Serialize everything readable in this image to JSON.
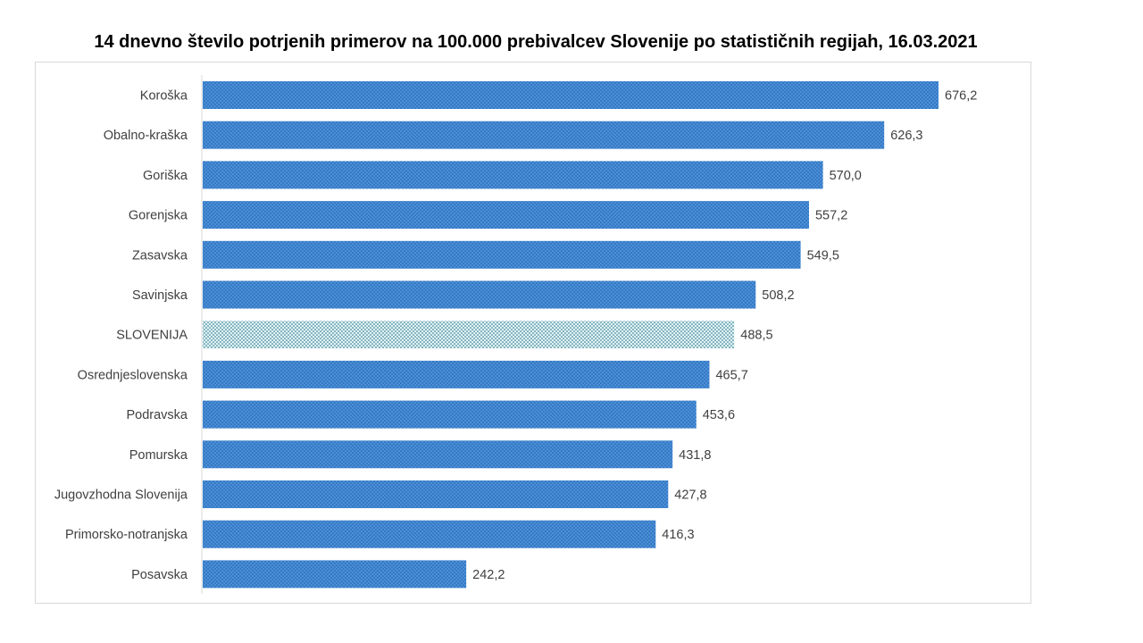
{
  "chart_data": {
    "type": "bar",
    "orientation": "horizontal",
    "title": "14 dnevno število potrjenih primerov na 100.000 prebivalcev Slovenije po statističnih regijah, 16.03.2021",
    "categories": [
      "Koroška",
      "Obalno-kraška",
      "Goriška",
      "Gorenjska",
      "Zasavska",
      "Savinjska",
      "SLOVENIJA",
      "Osrednjeslovenska",
      "Podravska",
      "Pomurska",
      "Jugovzhodna Slovenija",
      "Primorsko-notranjska",
      "Posavska"
    ],
    "values": [
      676.2,
      626.3,
      570.0,
      557.2,
      549.5,
      508.2,
      488.5,
      465.7,
      453.6,
      431.8,
      427.8,
      416.3,
      242.2
    ],
    "value_labels": [
      "676,2",
      "626,3",
      "570,0",
      "557,2",
      "549,5",
      "508,2",
      "488,5",
      "465,7",
      "453,6",
      "431,8",
      "427,8",
      "416,3",
      "242,2"
    ],
    "highlight_category": "SLOVENIJA",
    "xlim": [
      0,
      676.2
    ],
    "xlabel": "",
    "ylabel": "",
    "grid": false,
    "legend": "none",
    "colors": {
      "bar": "#4a8fd9",
      "bar_dots": "#1f5fa6",
      "highlight": "#dff3f3",
      "highlight_dots": "#1d6a86"
    }
  }
}
